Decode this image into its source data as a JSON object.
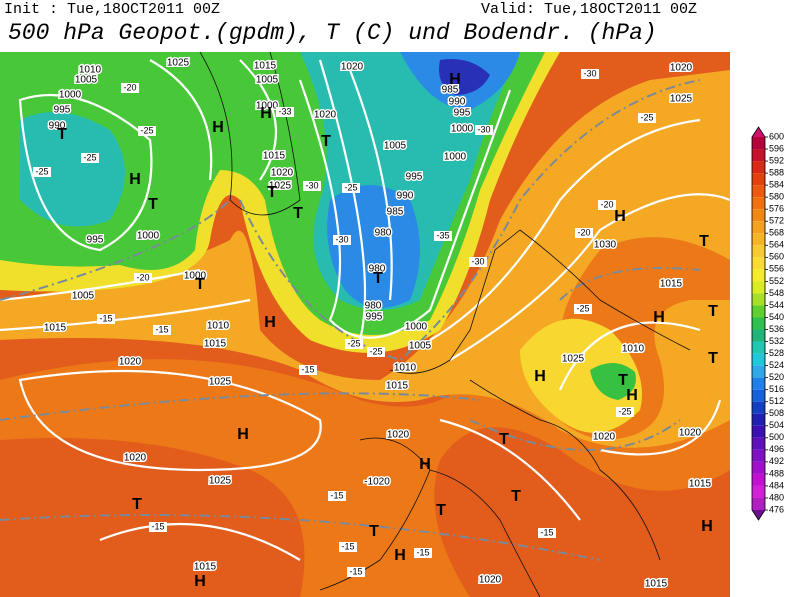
{
  "header": {
    "init": "Init : Tue,18OCT2011 00Z",
    "valid": "Valid: Tue,18OCT2011 00Z",
    "title": "500 hPa Geopot.(gpdm), T (C) und Bodendr. (hPa)"
  },
  "colorbar": {
    "ticks": [
      600,
      596,
      592,
      588,
      584,
      580,
      576,
      572,
      568,
      564,
      560,
      556,
      552,
      548,
      544,
      540,
      536,
      532,
      528,
      524,
      520,
      516,
      512,
      508,
      504,
      500,
      496,
      492,
      488,
      484,
      480,
      476
    ],
    "colors": [
      "#b4003c",
      "#c8102c",
      "#dc2818",
      "#e64010",
      "#ea5a10",
      "#ee7010",
      "#f08818",
      "#f4a020",
      "#f6b428",
      "#f8c830",
      "#fadc30",
      "#f4ec28",
      "#d8ec20",
      "#a8e028",
      "#60d030",
      "#30c050",
      "#20b478",
      "#20c8b4",
      "#20c8dc",
      "#30a8e8",
      "#2080e8",
      "#1860d8",
      "#1440c0",
      "#2020b0",
      "#3c10b0",
      "#6010b8",
      "#8010c0",
      "#a010c8",
      "#c010d0",
      "#d020d8",
      "#b020c0"
    ],
    "top_color": "#d0106c",
    "bottom_color": "#6a1090"
  },
  "map": {
    "pressure": [
      "1010",
      "1005",
      "1000",
      "995",
      "990",
      "995",
      "1000",
      "1005",
      "1000",
      "1015",
      "1010",
      "1015",
      "1020",
      "1025",
      "1020",
      "1025",
      "1015",
      "1025",
      "1015",
      "1005",
      "1000",
      "1020",
      "1015",
      "1020",
      "1025",
      "1020",
      "985",
      "990",
      "995",
      "1000",
      "1005",
      "1000",
      "995",
      "990",
      "985",
      "980",
      "980",
      "980",
      "995",
      "1000",
      "1005",
      "1010",
      "1015",
      "1020",
      "-1020",
      "1020",
      "1015",
      "1015",
      "1020",
      "1030",
      "1015",
      "1010",
      "1025",
      "1020",
      "1025",
      "1020"
    ],
    "centers": [
      "T",
      "H",
      "T",
      "T",
      "H",
      "H",
      "T",
      "H",
      "H",
      "H",
      "T",
      "T",
      "T",
      "H",
      "T",
      "H",
      "T",
      "T",
      "T",
      "T",
      "H",
      "H",
      "T",
      "H",
      "T",
      "H",
      "T",
      "H",
      "T",
      "H"
    ],
    "temps": [
      "-30",
      "-25",
      "-20",
      "-20",
      "-25",
      "-25",
      "-20",
      "-25",
      "-25",
      "-25",
      "-20",
      "-15",
      "-15",
      "-15",
      "-30",
      "-25",
      "-30",
      "-35",
      "-30",
      "-25",
      "-25",
      "-15",
      "-15",
      "-15",
      "-15",
      "-15",
      "-15",
      "-30",
      "-33"
    ]
  }
}
